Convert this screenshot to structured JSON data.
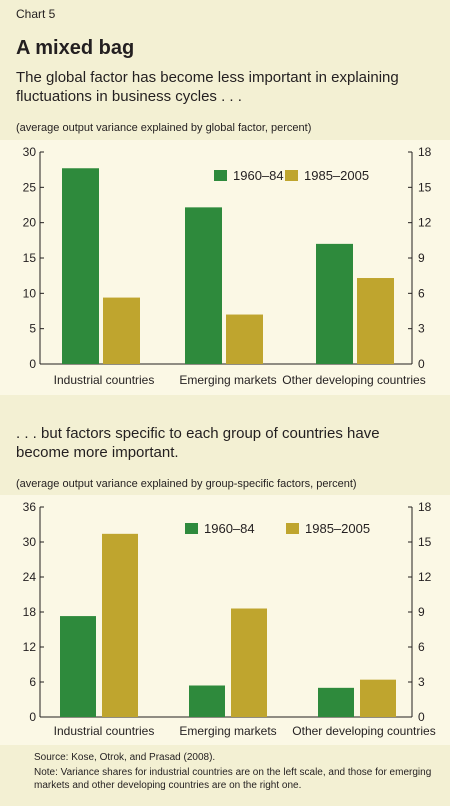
{
  "header": {
    "chart_number": "Chart 5",
    "title": "A mixed bag",
    "subtitle_1": "The global factor has become less important in explaining fluctuations in business cycles . . .",
    "unit_1": "(average output variance explained by global factor, percent)",
    "subtitle_2": ". . . but factors specific to each group of countries have become more important.",
    "unit_2": "(average output variance explained by group-specific factors, percent)"
  },
  "footer": {
    "source": "Source: Kose, Otrok, and Prasad (2008).",
    "note": "Note: Variance shares for industrial countries are on the left scale, and those for emerging markets and other developing countries are on the right one."
  },
  "colors": {
    "series_1": "#2e8a3c",
    "series_2": "#bfa52e",
    "background": "#f3f0d3",
    "panel": "#fbf8e5"
  },
  "chart_data": [
    {
      "type": "bar",
      "title": "",
      "categories": [
        "Industrial countries",
        "Emerging markets",
        "Other developing countries"
      ],
      "series": [
        {
          "name": "1960–84",
          "values": [
            27.7,
            13.3,
            10.2
          ]
        },
        {
          "name": "1985–2005",
          "values": [
            9.4,
            4.2,
            7.3
          ]
        }
      ],
      "value_axis": "Industrial countries on left scale; Emerging markets and Other developing countries on right scale",
      "ylim_left": [
        0,
        30
      ],
      "ylim_right": [
        0,
        18
      ],
      "yticks_left": [
        "0",
        "5",
        "10",
        "15",
        "20",
        "25",
        "30"
      ],
      "yticks_right": [
        "0",
        "3",
        "6",
        "9",
        "12",
        "15",
        "18"
      ],
      "legend_position": "top-right",
      "grid": false
    },
    {
      "type": "bar",
      "title": "",
      "categories": [
        "Industrial countries",
        "Emerging markets",
        "Other developing countries"
      ],
      "series": [
        {
          "name": "1960–84",
          "values": [
            17.3,
            2.7,
            2.5
          ]
        },
        {
          "name": "1985–2005",
          "values": [
            31.4,
            9.3,
            3.2
          ]
        }
      ],
      "value_axis": "Industrial countries on left scale; Emerging markets and Other developing countries on right scale",
      "ylim_left": [
        0,
        36
      ],
      "ylim_right": [
        0,
        18
      ],
      "yticks_left": [
        "0",
        "6",
        "12",
        "18",
        "24",
        "30",
        "36"
      ],
      "yticks_right": [
        "0",
        "3",
        "6",
        "9",
        "12",
        "15",
        "18"
      ],
      "legend_position": "top-right",
      "grid": false
    }
  ]
}
